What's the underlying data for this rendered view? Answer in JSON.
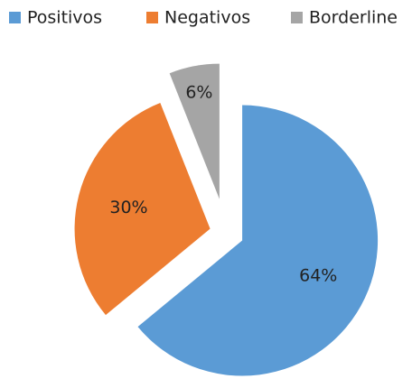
{
  "chart_data": {
    "type": "pie",
    "categories": [
      "Positivos",
      "Negativos",
      "Borderline"
    ],
    "values": [
      64,
      30,
      6
    ],
    "value_labels": [
      "64%",
      "30%",
      "6%"
    ],
    "colors": [
      "#5b9bd5",
      "#ed7d31",
      "#a5a5a5"
    ],
    "legend": "top",
    "exploded": true
  }
}
